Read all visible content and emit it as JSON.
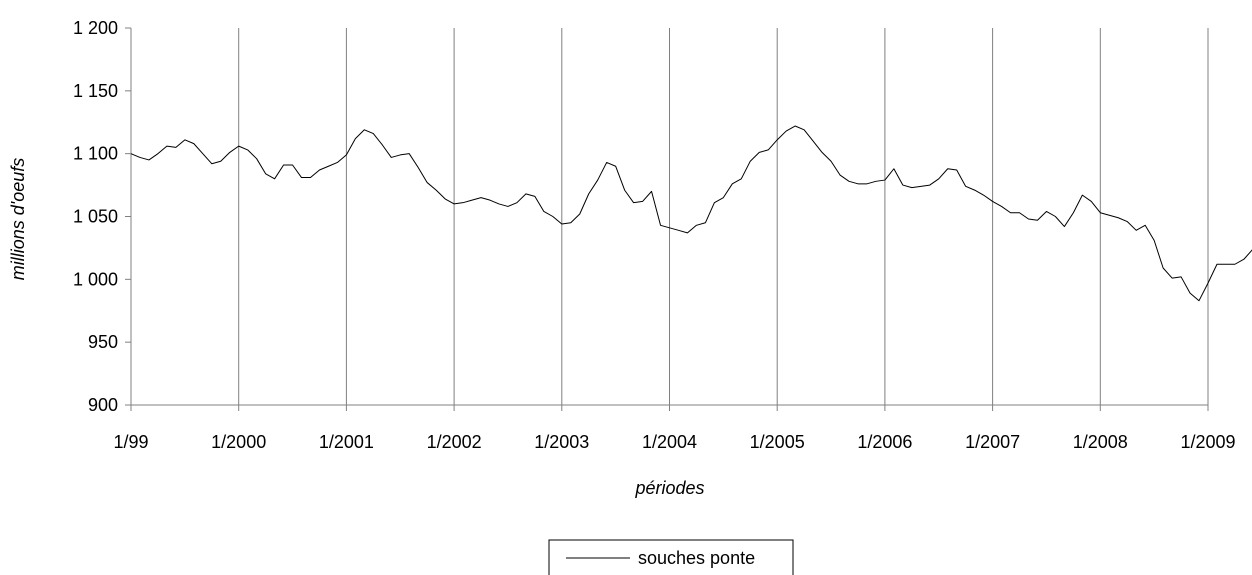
{
  "chart_data": {
    "type": "line",
    "title": "",
    "xlabel": "périodes",
    "ylabel": "millions d'oeufs",
    "x_tick_labels": [
      "1/99",
      "1/2000",
      "1/2001",
      "1/2002",
      "1/2003",
      "1/2004",
      "1/2005",
      "1/2006",
      "1/2007",
      "1/2008",
      "1/2009"
    ],
    "y_tick_labels": [
      "900",
      "950",
      "1 000",
      "1 050",
      "1 100",
      "1 150",
      "1 200"
    ],
    "ylim": [
      900,
      1200
    ],
    "xlim": [
      "1/99",
      "1/2009"
    ],
    "vertical_grid": true,
    "horizontal_grid": false,
    "legend_position": "bottom-center",
    "series": [
      {
        "name": "souches ponte",
        "start": "1/99",
        "frequency": "monthly",
        "values": [
          1100,
          1097,
          1095,
          1100,
          1106,
          1105,
          1111,
          1108,
          1100,
          1092,
          1094,
          1101,
          1106,
          1103,
          1096,
          1084,
          1080,
          1091,
          1091,
          1081,
          1081,
          1087,
          1090,
          1093,
          1099,
          1112,
          1119,
          1116,
          1107,
          1097,
          1099,
          1100,
          1089,
          1077,
          1071,
          1064,
          1060,
          1061,
          1063,
          1065,
          1063,
          1060,
          1058,
          1061,
          1068,
          1066,
          1054,
          1050,
          1044,
          1045,
          1052,
          1068,
          1079,
          1093,
          1090,
          1071,
          1061,
          1062,
          1070,
          1043,
          1041,
          1039,
          1037,
          1043,
          1045,
          1061,
          1065,
          1076,
          1080,
          1094,
          1101,
          1103,
          1111,
          1118,
          1122,
          1119,
          1110,
          1101,
          1094,
          1083,
          1078,
          1076,
          1076,
          1078,
          1079,
          1088,
          1075,
          1073,
          1074,
          1075,
          1080,
          1088,
          1087,
          1074,
          1071,
          1067,
          1062,
          1058,
          1053,
          1053,
          1048,
          1047,
          1054,
          1050,
          1042,
          1053,
          1067,
          1062,
          1053,
          1051,
          1049,
          1046,
          1039,
          1043,
          1031,
          1009,
          1001,
          1002,
          989,
          983,
          997,
          1012,
          1012,
          1012,
          1016,
          1024,
          1023,
          1032
        ]
      }
    ]
  }
}
